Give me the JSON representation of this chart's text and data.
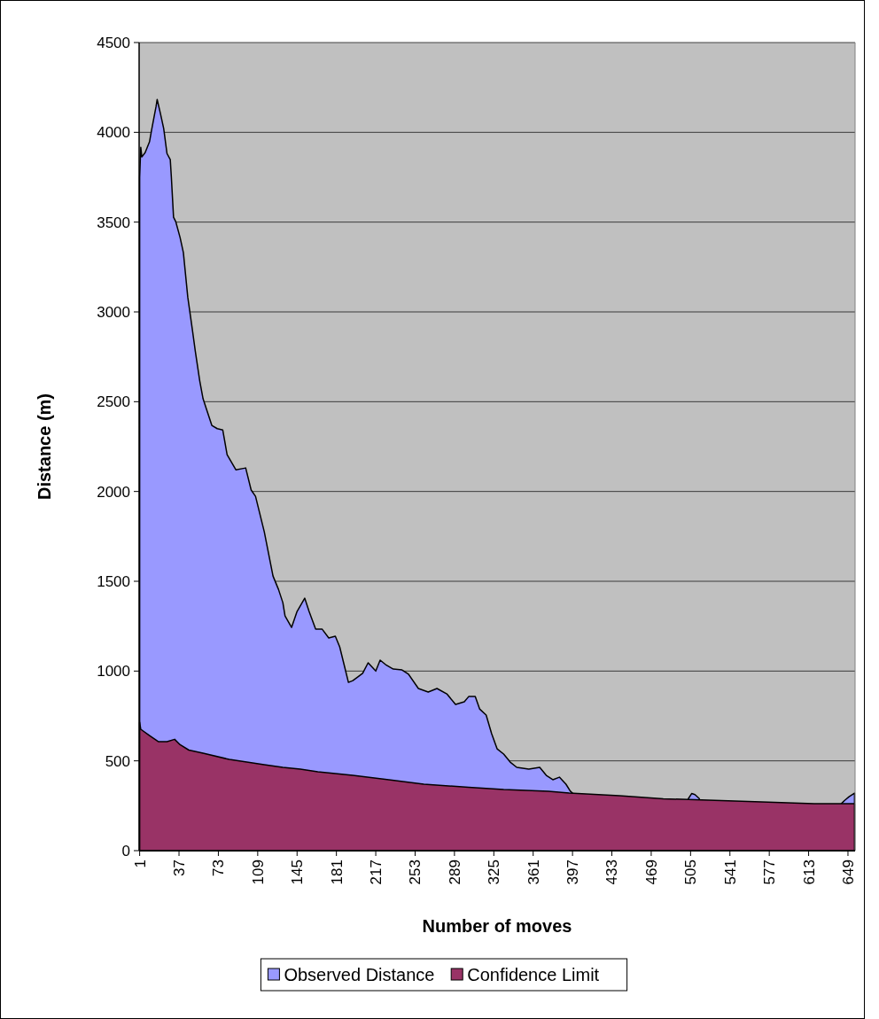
{
  "chart_data": {
    "type": "area",
    "xlabel": "Number of moves",
    "ylabel": "Distance (m)",
    "xlim": [
      0.5,
      655.5
    ],
    "xticks": [
      1,
      37,
      73,
      109,
      145,
      181,
      217,
      253,
      289,
      325,
      361,
      397,
      433,
      469,
      505,
      541,
      577,
      613,
      649
    ],
    "ylim": [
      0,
      4500
    ],
    "yticks": [
      0,
      500,
      1000,
      1500,
      2000,
      2500,
      3000,
      3500,
      4000,
      4500
    ],
    "grid": "y",
    "legend": "bottom",
    "series": [
      {
        "name": "Observed Distance",
        "color": "#9999ff",
        "x": [
          1,
          2,
          3,
          6,
          10,
          12,
          16,
          17,
          20,
          23,
          26,
          29,
          30,
          32,
          34,
          38,
          41,
          45,
          49,
          52,
          56,
          59,
          63,
          67,
          72,
          77,
          81,
          89,
          98,
          103,
          107,
          115,
          123,
          128,
          132,
          134,
          140,
          145,
          152,
          156,
          162,
          168,
          174,
          180,
          184,
          188,
          192,
          196,
          205,
          210,
          217,
          221,
          226,
          233,
          241,
          247,
          256,
          265,
          273,
          282,
          290,
          298,
          302,
          308,
          312,
          318,
          323,
          328,
          334,
          340,
          346,
          357,
          367,
          373,
          379,
          385,
          391,
          395,
          397,
          398,
          502,
          503,
          506,
          509,
          513,
          514,
          642,
          643,
          646,
          650,
          655
        ],
        "values": [
          3750,
          3917,
          3863,
          3887,
          3947,
          4016,
          4144,
          4183,
          4105,
          4021,
          3882,
          3848,
          3750,
          3527,
          3503,
          3414,
          3330,
          3083,
          2911,
          2777,
          2615,
          2516,
          2442,
          2368,
          2350,
          2343,
          2205,
          2121,
          2131,
          2008,
          1973,
          1776,
          1529,
          1455,
          1381,
          1307,
          1243,
          1332,
          1406,
          1332,
          1233,
          1233,
          1184,
          1194,
          1135,
          1036,
          937,
          947,
          987,
          1046,
          1000,
          1061,
          1036,
          1011,
          1006,
          982,
          903,
          883,
          903,
          873,
          814,
          829,
          858,
          858,
          789,
          755,
          651,
          567,
          538,
          493,
          464,
          454,
          464,
          419,
          395,
          409,
          370,
          331,
          320,
          null,
          null,
          290,
          318,
          312,
          290,
          null,
          null,
          262,
          280,
          300,
          320
        ]
      },
      {
        "name": "Confidence Limit",
        "color": "#993366",
        "x": [
          1,
          2,
          10,
          18,
          26,
          33,
          38,
          46,
          59,
          83,
          99,
          115,
          132,
          148,
          164,
          180,
          196,
          229,
          261,
          302,
          334,
          375,
          394,
          440,
          480,
          521,
          570,
          618,
          655
        ],
        "values": [
          715,
          676,
          641,
          607,
          607,
          620,
          590,
          560,
          543,
          508,
          493,
          479,
          464,
          454,
          439,
          429,
          419,
          395,
          370,
          353,
          340,
          331,
          321,
          306,
          289,
          281,
          271,
          261,
          261
        ]
      }
    ]
  }
}
